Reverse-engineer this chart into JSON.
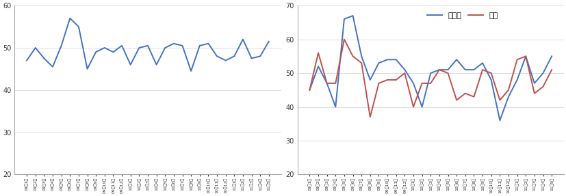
{
  "left_values": [
    47,
    50,
    47.5,
    45.5,
    50.5,
    57,
    55,
    45,
    49,
    50,
    49,
    50.5,
    46,
    50,
    50.5,
    46,
    50,
    51,
    50.5,
    44.5,
    50.5,
    51,
    48,
    47,
    48,
    52,
    47.5,
    48,
    51.5
  ],
  "right_new_orders": [
    45,
    52,
    47,
    40,
    66,
    67,
    55,
    48,
    53,
    54,
    54,
    51,
    47,
    40,
    50,
    51,
    51,
    54,
    51,
    51,
    53,
    48,
    36,
    43,
    48,
    55,
    47,
    50,
    55
  ],
  "right_output": [
    45,
    56,
    47,
    47,
    60,
    55,
    53,
    37,
    47,
    48,
    48,
    50,
    40,
    47,
    47,
    51,
    50,
    42,
    44,
    43,
    51,
    50,
    42,
    45,
    54,
    55,
    44,
    46,
    51
  ],
  "left_ylim": [
    20,
    60
  ],
  "right_ylim": [
    20,
    70
  ],
  "left_yticks": [
    20,
    30,
    40,
    50,
    60
  ],
  "right_yticks": [
    20,
    30,
    40,
    50,
    60,
    70
  ],
  "line_color_blue": "#4472C4",
  "line_color_red": "#C0504D",
  "legend_new_orders": "新订单",
  "legend_output": "产出",
  "background_color": "#ffffff",
  "grid_color": "#d8d8d8",
  "x_labels": [
    "09年1月",
    "09年2月",
    "09年3月",
    "09年4月",
    "09年5月",
    "09年6月",
    "09年7月",
    "09年8月",
    "09年9月",
    "09年10月",
    "09年11月",
    "09年12月",
    "10年1月",
    "10年2月",
    "10年3月",
    "10年4月",
    "10年5月",
    "10年6月",
    "10年7月",
    "10年8月",
    "10年9月",
    "10年10月",
    "10年11月",
    "10年12月",
    "11年1月",
    "11年2月",
    "11年3月",
    "11年4月",
    "11年5月"
  ]
}
